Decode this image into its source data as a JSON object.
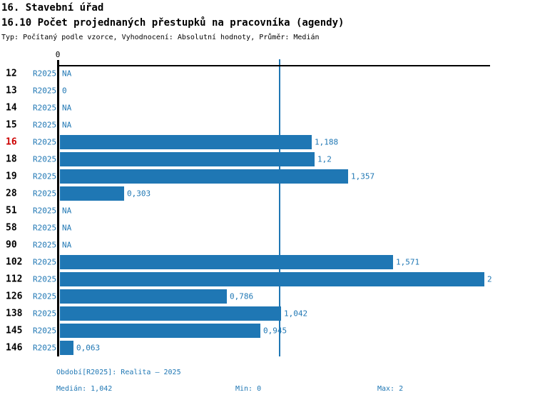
{
  "title": "16. Stavební úřad",
  "subtitle": "16.10 Počet projednaných přestupků na pracovníka (agendy)",
  "meta": "Typ: Počítaný podle vzorce, Vyhodnocení: Absolutní hodnoty, Průměr: Medián",
  "colors": {
    "bar": "#1f77b4",
    "blue_text": "#1f77b4",
    "median_line": "#1f77b4",
    "highlight_red": "#cc0000",
    "axis": "#000000"
  },
  "chart_data": {
    "type": "bar",
    "orientation": "horizontal",
    "series_label": "R2025",
    "categories": [
      "12",
      "13",
      "14",
      "15",
      "16",
      "18",
      "19",
      "28",
      "51",
      "58",
      "90",
      "102",
      "112",
      "126",
      "138",
      "145",
      "146"
    ],
    "values": [
      null,
      0,
      null,
      null,
      1.188,
      1.2,
      1.357,
      0.303,
      null,
      null,
      null,
      1.571,
      2,
      0.786,
      1.042,
      0.945,
      0.063
    ],
    "value_labels": [
      "NA",
      "0",
      "NA",
      "NA",
      "1,188",
      "1,2",
      "1,357",
      "0,303",
      "NA",
      "NA",
      "NA",
      "1,571",
      "2",
      "0,786",
      "1,042",
      "0,945",
      "0,063"
    ],
    "highlighted_category": "16",
    "xlim": [
      0,
      2
    ],
    "x_tick_label": "0",
    "median_value": 1.042,
    "grid": "median-line-only",
    "legend": "none"
  },
  "footer": {
    "period": "Období[R2025]: Realita – 2025",
    "median": "Medián: 1,042",
    "min": "Min: 0",
    "max": "Max: 2"
  }
}
